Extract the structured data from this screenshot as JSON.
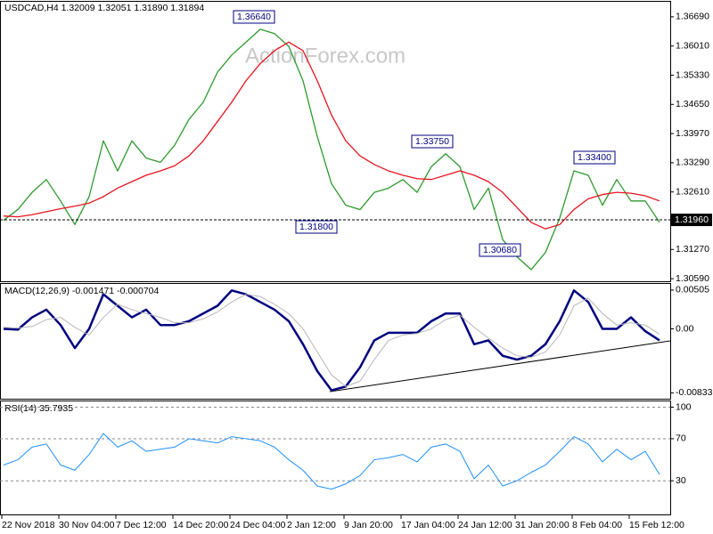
{
  "chart_data": [
    {
      "type": "line",
      "title": "USDCAD,H4  1.32009 1.32051 1.31890 1.31894",
      "watermark": "ActionForex.com",
      "categories": [
        "22 Nov 2018",
        null,
        null,
        null,
        "30 Nov 04:00",
        null,
        null,
        null,
        "7 Dec 12:00",
        null,
        null,
        null,
        "14 Dec 20:00",
        null,
        null,
        null,
        "24 Dec 04:00",
        null,
        null,
        null,
        "2 Jan 12:00",
        null,
        null,
        null,
        "9 Jan 20:00",
        null,
        null,
        null,
        "17 Jan 04:00",
        null,
        null,
        null,
        "24 Jan 12:00",
        null,
        null,
        null,
        "31 Jan 20:00",
        null,
        null,
        null,
        "8 Feb 04:00",
        null,
        null,
        null,
        "15 Feb 12:00",
        null,
        null
      ],
      "series": [
        {
          "color": "#2e9a2e",
          "values": [
            1.3195,
            1.322,
            1.326,
            1.329,
            1.324,
            1.3185,
            1.325,
            1.338,
            1.331,
            1.338,
            1.334,
            1.333,
            1.337,
            1.343,
            1.347,
            1.354,
            1.358,
            1.361,
            1.364,
            1.363,
            1.36,
            1.352,
            1.339,
            1.328,
            1.323,
            1.322,
            1.326,
            1.327,
            1.329,
            1.326,
            1.332,
            1.335,
            1.332,
            1.322,
            1.327,
            1.315,
            1.311,
            1.308,
            1.312,
            1.32,
            1.331,
            1.33,
            1.323,
            1.329,
            1.324,
            1.324,
            1.319
          ]
        },
        {
          "color": "#e8141e",
          "values": [
            1.3205,
            1.3203,
            1.3208,
            1.3215,
            1.3222,
            1.3228,
            1.3235,
            1.325,
            1.327,
            1.3285,
            1.33,
            1.331,
            1.3322,
            1.3345,
            1.338,
            1.3425,
            1.347,
            1.352,
            1.356,
            1.359,
            1.361,
            1.359,
            1.352,
            1.344,
            1.338,
            1.3345,
            1.3325,
            1.331,
            1.33,
            1.3292,
            1.329,
            1.33,
            1.331,
            1.33,
            1.3285,
            1.326,
            1.3225,
            1.319,
            1.3175,
            1.3185,
            1.322,
            1.3245,
            1.3255,
            1.326,
            1.3258,
            1.3252,
            1.324
          ]
        }
      ],
      "ylim": [
        1.3053,
        1.3704
      ],
      "yticks": [
        {
          "value": 1.3669,
          "label": "1.36690"
        },
        {
          "value": 1.3601,
          "label": "1.36010"
        },
        {
          "value": 1.3533,
          "label": "1.35330"
        },
        {
          "value": 1.3465,
          "label": "1.34650"
        },
        {
          "value": 1.3397,
          "label": "1.33970"
        },
        {
          "value": 1.3329,
          "label": "1.33290"
        },
        {
          "value": 1.3261,
          "label": "1.32610"
        },
        {
          "value": 1.3127,
          "label": "1.31270"
        },
        {
          "value": 1.3059,
          "label": "1.30590"
        }
      ],
      "current_price": {
        "value": 1.3196,
        "label": "1.31960"
      },
      "annotations": [
        "1.36640",
        "1.33750",
        "1.33400",
        "1.31800",
        "1.30680"
      ],
      "grid": false
    },
    {
      "type": "line",
      "title": "MACD(12,26,9) -0.001471 -0.000704",
      "series": [
        {
          "color": "#000080",
          "width": 2.5,
          "values": [
            0,
            -0.0001,
            0.0015,
            0.0025,
            0.0005,
            -0.0025,
            0,
            0.0045,
            0.003,
            0.0015,
            0.0025,
            0.0005,
            0.0005,
            0.001,
            0.002,
            0.003,
            0.005,
            0.0045,
            0.0035,
            0.0025,
            0.001,
            -0.002,
            -0.0055,
            -0.008,
            -0.0075,
            -0.005,
            -0.0015,
            -0.0005,
            -0.0005,
            -0.0005,
            0.001,
            0.002,
            0.002,
            -0.002,
            -0.0015,
            -0.0035,
            -0.004,
            -0.0035,
            -0.002,
            0.001,
            0.005,
            0.0035,
            0,
            0,
            0.0015,
            -0.0003,
            -0.0015
          ]
        },
        {
          "color": "#b8b8b8",
          "width": 1,
          "values": [
            0.0002,
            0.0001,
            0.0003,
            0.0012,
            0.0015,
            0.0002,
            -0.0008,
            0.0015,
            0.0032,
            0.0025,
            0.002,
            0.0015,
            0.0008,
            0.0008,
            0.0013,
            0.0022,
            0.0035,
            0.0045,
            0.0042,
            0.0032,
            0.002,
            0,
            -0.003,
            -0.006,
            -0.0075,
            -0.0068,
            -0.004,
            -0.0015,
            -0.0008,
            -0.0006,
            0,
            0.0012,
            0.0018,
            0.0002,
            -0.0012,
            -0.0025,
            -0.0035,
            -0.0037,
            -0.003,
            -0.0008,
            0.003,
            0.004,
            0.002,
            0.0005,
            0.0008,
            0.0005,
            -0.0007
          ]
        }
      ],
      "ylim": [
        -0.00909,
        0.00585
      ],
      "yticks": [
        0.00505,
        {
          "value": 0,
          "label": "0.00"
        },
        -0.008332
      ],
      "grid": false
    },
    {
      "type": "line",
      "title": "RSI(14) 35.7935",
      "series": [
        {
          "color": "#1e90ff",
          "width": 1,
          "values": [
            45,
            50,
            62,
            65,
            45,
            40,
            55,
            75,
            62,
            68,
            58,
            60,
            62,
            70,
            68,
            66,
            72,
            70,
            68,
            62,
            50,
            40,
            25,
            22,
            27,
            35,
            50,
            52,
            55,
            48,
            62,
            65,
            58,
            32,
            45,
            25,
            30,
            38,
            45,
            58,
            72,
            65,
            48,
            60,
            50,
            58,
            36
          ]
        }
      ],
      "ylim": [
        -2,
        105.5
      ],
      "yticks": [
        100,
        70,
        30
      ],
      "grid": true
    }
  ]
}
